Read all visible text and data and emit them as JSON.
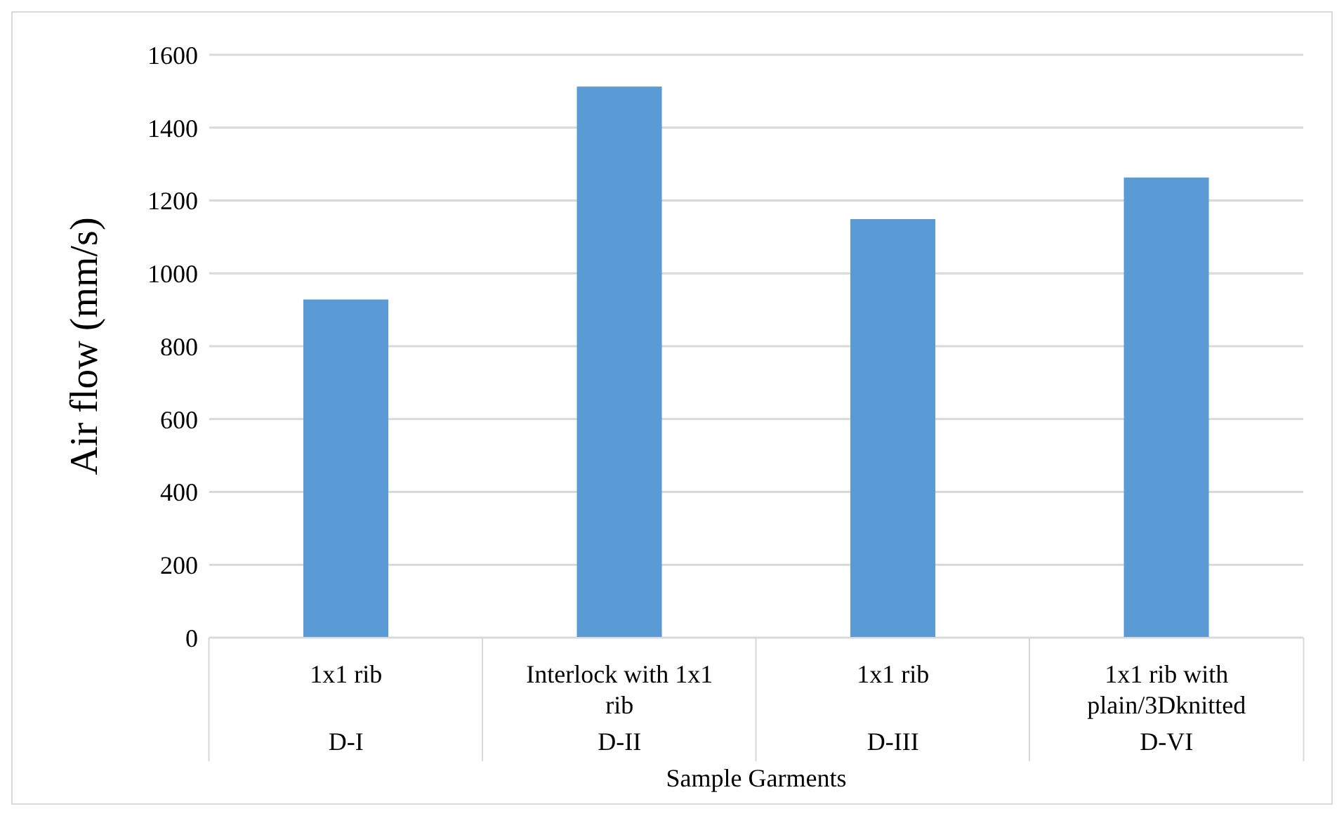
{
  "chart_data": {
    "type": "bar",
    "xlabel": "Sample Garments",
    "ylabel": "Air flow (mm/s)",
    "categories": [
      "1x1 rib\nD-I",
      "Interlock with 1x1 rib\nD-II",
      "1x1 rib\nD-III",
      "1x1 rib with plain/3Dknitted\nD-VI"
    ],
    "values": [
      928,
      1513,
      1149,
      1263
    ],
    "color": "#5b9bd5",
    "ylim": [
      0,
      1600
    ],
    "yticks": [
      0,
      200,
      400,
      600,
      800,
      1000,
      1200,
      1400,
      1600
    ],
    "grid": "y"
  }
}
